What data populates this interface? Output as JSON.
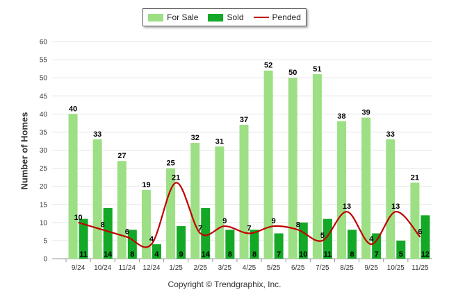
{
  "chart_data": {
    "type": "bar",
    "categories": [
      "9/24",
      "10/24",
      "11/24",
      "12/24",
      "1/25",
      "2/25",
      "3/25",
      "4/25",
      "5/25",
      "6/25",
      "7/25",
      "8/25",
      "9/25",
      "10/25",
      "11/25"
    ],
    "series": [
      {
        "name": "For Sale",
        "type": "bar",
        "color": "#9ddf84",
        "values": [
          40,
          33,
          27,
          19,
          25,
          32,
          31,
          37,
          52,
          50,
          51,
          38,
          39,
          33,
          21
        ]
      },
      {
        "name": "Sold",
        "type": "bar",
        "color": "#13a826",
        "values": [
          11,
          14,
          8,
          4,
          9,
          14,
          8,
          8,
          7,
          10,
          11,
          8,
          7,
          5,
          12
        ]
      },
      {
        "name": "Pended",
        "type": "line",
        "color": "#c00000",
        "values": [
          10,
          8,
          6,
          4,
          21,
          7,
          9,
          7,
          9,
          8,
          5,
          13,
          4,
          13,
          6
        ]
      }
    ],
    "ylabel": "Number of Homes",
    "ylim": [
      0,
      60
    ],
    "yticks": [
      0,
      5,
      10,
      15,
      20,
      25,
      30,
      35,
      40,
      45,
      50,
      55,
      60
    ],
    "grid": true,
    "legend": "top-center"
  },
  "legend": {
    "for_sale": "For Sale",
    "sold": "Sold",
    "pended": "Pended"
  },
  "copyright": "Copyright © Trendgraphix, Inc."
}
